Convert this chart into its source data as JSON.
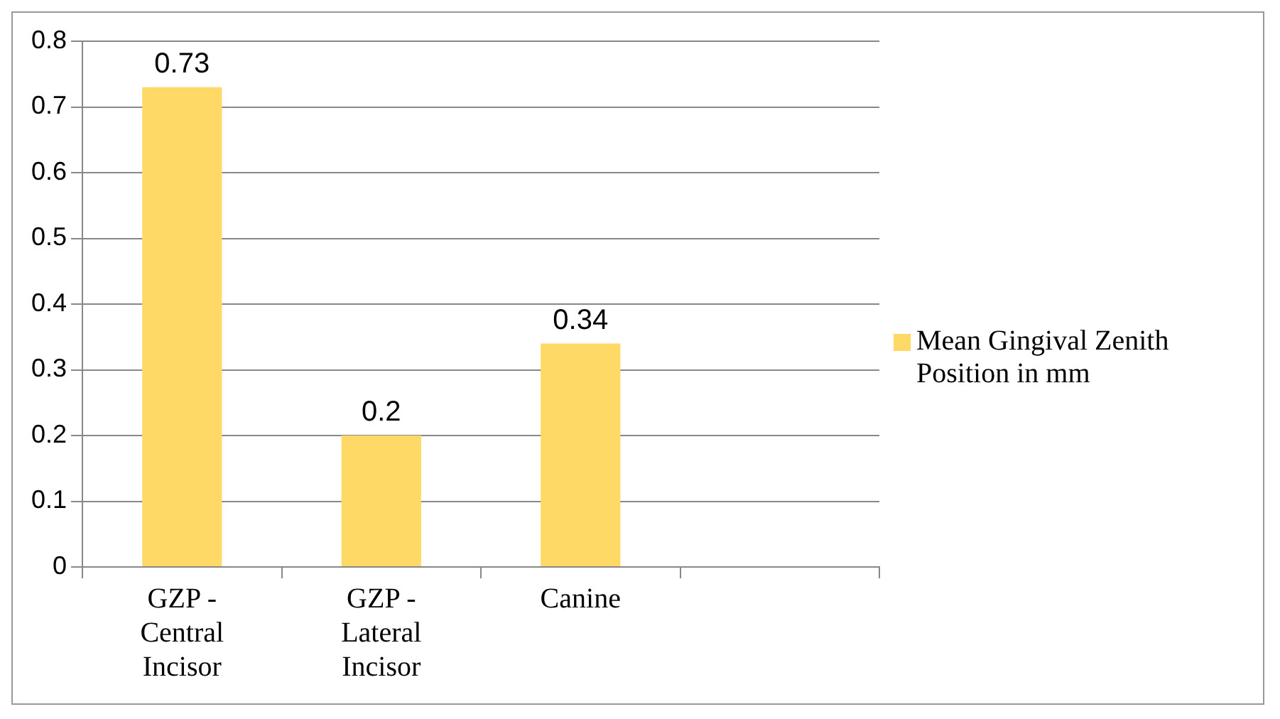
{
  "chart_data": {
    "type": "bar",
    "categories": [
      "GZP - Central Incisor",
      "GZP - Lateral Incisor",
      "Canine",
      null
    ],
    "series": [
      {
        "name": "Mean Gingival Zenith Position in mm",
        "color": "#ffd966",
        "values": [
          0.73,
          0.2,
          0.34,
          null
        ]
      }
    ],
    "ylim": [
      0,
      0.8
    ],
    "yticks": [
      0,
      0.1,
      0.2,
      0.3,
      0.4,
      0.5,
      0.6,
      0.7,
      0.8
    ],
    "grid": "y",
    "legend": "right",
    "data_labels": true
  }
}
